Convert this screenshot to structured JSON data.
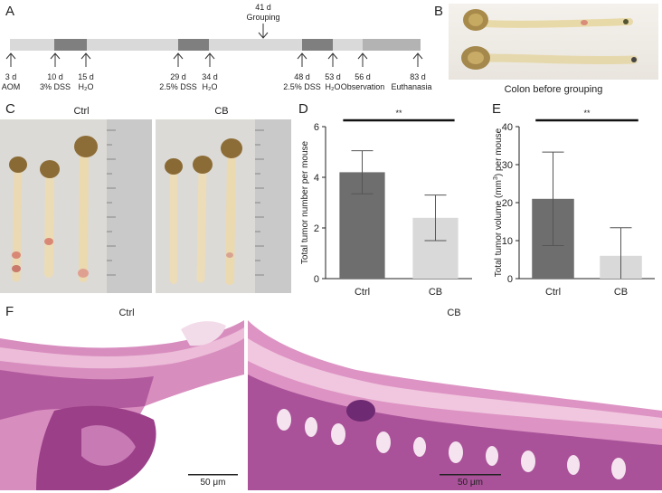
{
  "panels": {
    "a": "A",
    "b": "B",
    "c": "C",
    "d": "D",
    "e": "E",
    "f": "F"
  },
  "timeline": {
    "grouping_day": "41 d",
    "grouping_label": "Grouping",
    "events": [
      {
        "day": "3 d",
        "label": "AOM"
      },
      {
        "day": "10 d",
        "label": "3% DSS"
      },
      {
        "day": "15 d",
        "label": "H₂O"
      },
      {
        "day": "29 d",
        "label": "2.5% DSS"
      },
      {
        "day": "34 d",
        "label": "H₂O"
      },
      {
        "day": "48 d",
        "label": "2.5% DSS"
      },
      {
        "day": "53 d",
        "label": "H₂O"
      },
      {
        "day": "56 d",
        "label": "Observation"
      },
      {
        "day": "83 d",
        "label": "Euthanasia"
      }
    ],
    "colors": {
      "baseline": "#d9d9d9",
      "dss": "#7f7f7f",
      "observation": "#b3b3b3"
    }
  },
  "panel_b": {
    "caption": "Colon before grouping"
  },
  "panel_c": {
    "label_ctrl": "Ctrl",
    "label_cb": "CB"
  },
  "panel_f": {
    "label_ctrl": "Ctrl",
    "label_cb": "CB",
    "scale_ctrl": "50 μm",
    "scale_cb": "50 μm"
  },
  "chart_data": [
    {
      "type": "bar",
      "categories": [
        "Ctrl",
        "CB"
      ],
      "values": [
        4.2,
        2.4
      ],
      "errors": [
        0.85,
        0.9
      ],
      "ylabel": "Total tumor number per mouse",
      "ylim": [
        0,
        6
      ],
      "yticks": [
        0,
        2,
        4,
        6
      ],
      "significance": "**",
      "colors": [
        "#6e6e6e",
        "#d9d9d9"
      ]
    },
    {
      "type": "bar",
      "categories": [
        "Ctrl",
        "CB"
      ],
      "values": [
        21,
        6
      ],
      "errors": [
        12.3,
        7.4
      ],
      "ylabel": "Total tumor volume (mm³) per mouse",
      "ylim": [
        0,
        40
      ],
      "yticks": [
        0,
        10,
        20,
        30,
        40
      ],
      "significance": "**",
      "colors": [
        "#6e6e6e",
        "#d9d9d9"
      ]
    }
  ]
}
